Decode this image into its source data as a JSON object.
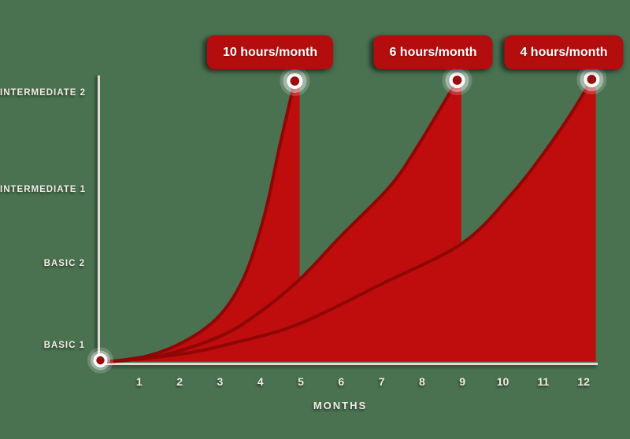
{
  "background_color": "#4a7251",
  "colors": {
    "area_fill": "#bf0c0c",
    "area_stroke": "#8e0707",
    "badge_bg": "#b30d0d",
    "badge_text": "#ffffff",
    "axis_line": "#e3dcd2",
    "label_text": "#f2ece2",
    "marker_ring": "#ffffff",
    "marker_center": "#9c0a0a"
  },
  "chart_data": {
    "type": "area",
    "title": "",
    "xlabel": "MONTHS",
    "x_ticks": [
      "1",
      "2",
      "3",
      "4",
      "5",
      "6",
      "7",
      "8",
      "9",
      "10",
      "11",
      "12"
    ],
    "x_range": [
      0,
      12.3
    ],
    "grid": false,
    "level_labels": [
      "BASIC 1",
      "BASIC 2",
      "INTERMEDIATE 1",
      "INTERMEDIATE 2"
    ],
    "start_level": "BASIC 1",
    "goal_level": "INTERMEDIATE 2",
    "series": [
      {
        "name": "10 hours/month",
        "months_to_goal": 5,
        "points": [
          [
            0,
            0.8
          ],
          [
            1.2,
            0.88
          ],
          [
            2.2,
            1.08
          ],
          [
            3.0,
            1.38
          ],
          [
            3.6,
            1.85
          ],
          [
            4.1,
            2.6
          ],
          [
            4.5,
            3.5
          ],
          [
            4.85,
            4.24
          ]
        ],
        "drop_month": 4.97
      },
      {
        "name": "6 hours/month",
        "months_to_goal": 9,
        "points": [
          [
            0,
            0.8
          ],
          [
            1.5,
            0.88
          ],
          [
            3.0,
            1.12
          ],
          [
            4.0,
            1.42
          ],
          [
            5.0,
            1.83
          ],
          [
            6.0,
            2.35
          ],
          [
            7.2,
            2.95
          ],
          [
            7.9,
            3.45
          ],
          [
            8.87,
            4.25
          ]
        ],
        "drop_month": 8.97
      },
      {
        "name": "4 hours/month",
        "months_to_goal": 12,
        "points": [
          [
            0,
            0.8
          ],
          [
            2.0,
            0.9
          ],
          [
            3.5,
            1.06
          ],
          [
            5.0,
            1.28
          ],
          [
            7.0,
            1.76
          ],
          [
            9.0,
            2.26
          ],
          [
            10.2,
            2.85
          ],
          [
            11.0,
            3.35
          ],
          [
            11.7,
            3.85
          ],
          [
            12.2,
            4.26
          ]
        ],
        "drop_month": 12.3
      }
    ]
  }
}
